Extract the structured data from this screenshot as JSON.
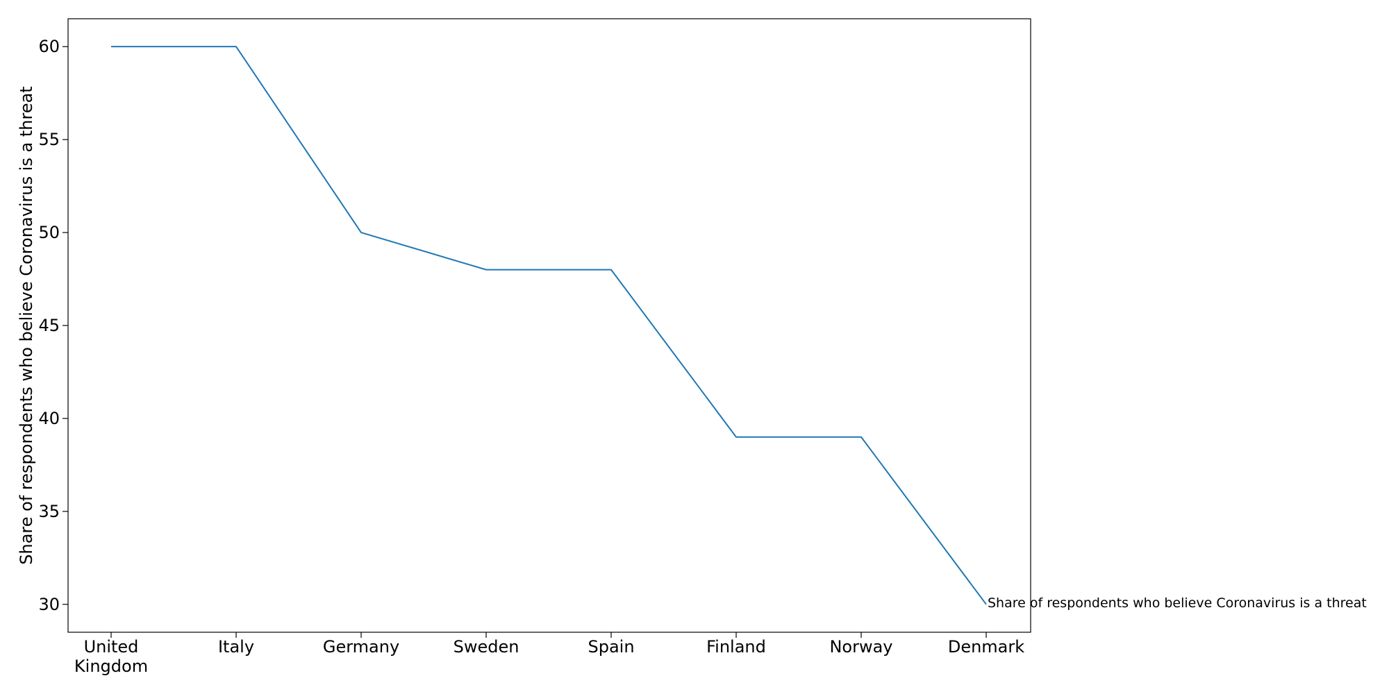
{
  "chart_data": {
    "type": "line",
    "categories": [
      "United Kingdom",
      "Italy",
      "Germany",
      "Sweden",
      "Spain",
      "Finland",
      "Norway",
      "Denmark"
    ],
    "category_label_lines": [
      [
        "United",
        "Kingdom"
      ],
      [
        "Italy"
      ],
      [
        "Germany"
      ],
      [
        "Sweden"
      ],
      [
        "Spain"
      ],
      [
        "Finland"
      ],
      [
        "Norway"
      ],
      [
        "Denmark"
      ]
    ],
    "series": [
      {
        "name": "Share of respondents who believe Coronavirus is a threat",
        "values": [
          60,
          60,
          50,
          48,
          48,
          39,
          39,
          30
        ]
      }
    ],
    "xlabel": "",
    "ylabel": "Share of respondents who believe Coronavirus is a threat",
    "ylim": [
      28.5,
      61.5
    ],
    "yticks": [
      30,
      35,
      40,
      45,
      50,
      55,
      60
    ],
    "grid": false,
    "line_color": "#1f77b4"
  }
}
